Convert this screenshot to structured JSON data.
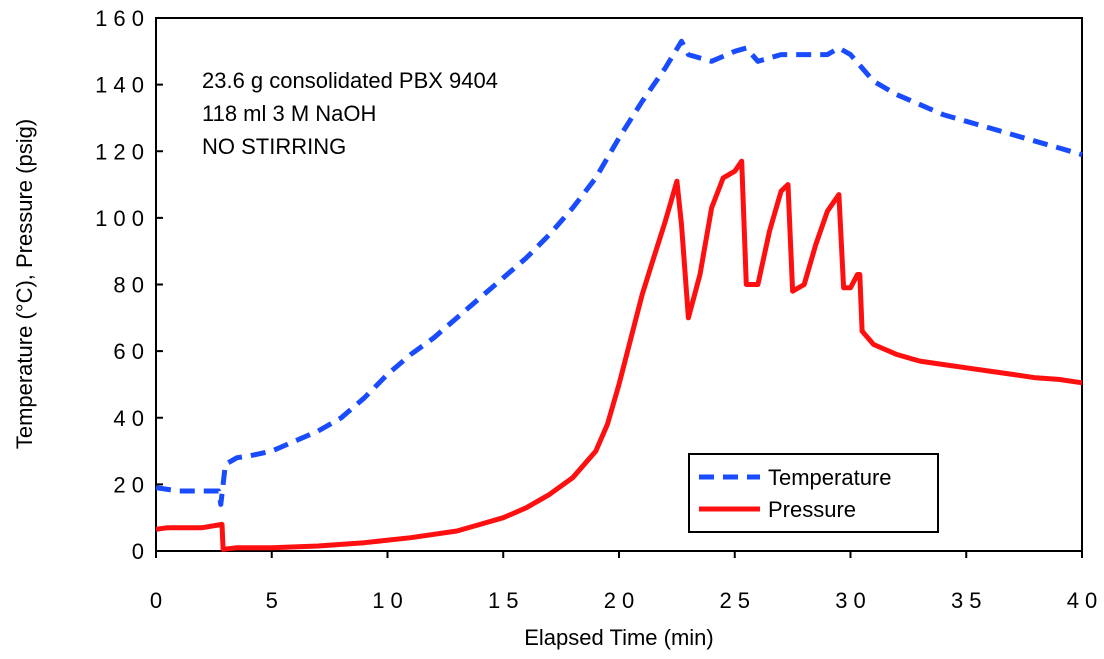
{
  "chart_data": {
    "type": "line",
    "xlabel": "Elapsed Time  (min)",
    "ylabel": "Temperature  (°C),  Pressure  (psig)",
    "xlim": [
      0,
      40
    ],
    "ylim": [
      0,
      160
    ],
    "xticks": [
      0,
      5,
      10,
      15,
      20,
      25,
      30,
      35,
      40
    ],
    "yticks": [
      0,
      20,
      40,
      60,
      80,
      100,
      120,
      140,
      160
    ],
    "xtick_labels": [
      "0",
      "5",
      "1 0",
      "1 5",
      "2 0",
      "2 5",
      "3 0",
      "3 5",
      "4 0"
    ],
    "ytick_labels": [
      "0",
      "2 0",
      "4 0",
      "6 0",
      "8 0",
      "1 0 0",
      "1 2 0",
      "1 4 0",
      "1 6 0"
    ],
    "annotations": [
      "23.6 g consolidated PBX 9404",
      "118 ml 3 M NaOH",
      "NO STIRRING"
    ],
    "grid": false,
    "legend_position": "bottom-right",
    "series": [
      {
        "name": "Temperature",
        "color": "#1a4cff",
        "style": "dashed",
        "x": [
          0,
          0.5,
          1,
          2,
          2.7,
          2.8,
          3.0,
          3.5,
          4,
          5,
          6,
          7,
          8,
          9,
          10,
          11,
          12,
          13,
          14,
          15,
          16,
          17,
          18,
          19,
          20,
          21,
          22,
          22.7,
          23,
          23.5,
          24,
          25,
          25.5,
          26,
          27,
          28,
          29,
          29.5,
          30,
          31,
          32,
          33,
          34,
          35,
          36,
          37,
          38,
          39,
          40
        ],
        "y": [
          19,
          18.5,
          18,
          18,
          18,
          14,
          26,
          28,
          28.5,
          30,
          33,
          36,
          40,
          46,
          53,
          59,
          64,
          70,
          76,
          82,
          88,
          95,
          103,
          112,
          124,
          135,
          145,
          153,
          149,
          148,
          147,
          150,
          151,
          147,
          149,
          149,
          149,
          151,
          149,
          141,
          137,
          134,
          131,
          129,
          127,
          125,
          123,
          121,
          119
        ]
      },
      {
        "name": "Pressure",
        "color": "#ff1010",
        "style": "solid",
        "x": [
          0,
          0.5,
          1,
          2,
          2.85,
          2.9,
          3.5,
          5,
          7,
          9,
          11,
          13,
          14,
          15,
          16,
          17,
          18,
          19,
          19.5,
          20,
          21,
          21.5,
          22,
          22.5,
          22.7,
          23,
          23.5,
          24,
          24.5,
          25,
          25.3,
          25.5,
          26,
          26.5,
          27,
          27.3,
          27.5,
          28,
          28.5,
          29,
          29.5,
          29.7,
          30,
          30.3,
          30.4,
          30.5,
          31,
          32,
          33,
          34,
          35,
          36,
          37,
          38,
          39,
          40
        ],
        "y": [
          6.5,
          7,
          7,
          7,
          8,
          0.5,
          1,
          1,
          1.5,
          2.5,
          4,
          6,
          8,
          10,
          13,
          17,
          22,
          30,
          38,
          50,
          77,
          88,
          99,
          111,
          98,
          70,
          83,
          103,
          112,
          114,
          117,
          80,
          80,
          96,
          108,
          110,
          78,
          80,
          92,
          102,
          107,
          79,
          79,
          83,
          83,
          66,
          62,
          59,
          57,
          56,
          55,
          54,
          53,
          52,
          51.5,
          50.5
        ]
      }
    ]
  }
}
